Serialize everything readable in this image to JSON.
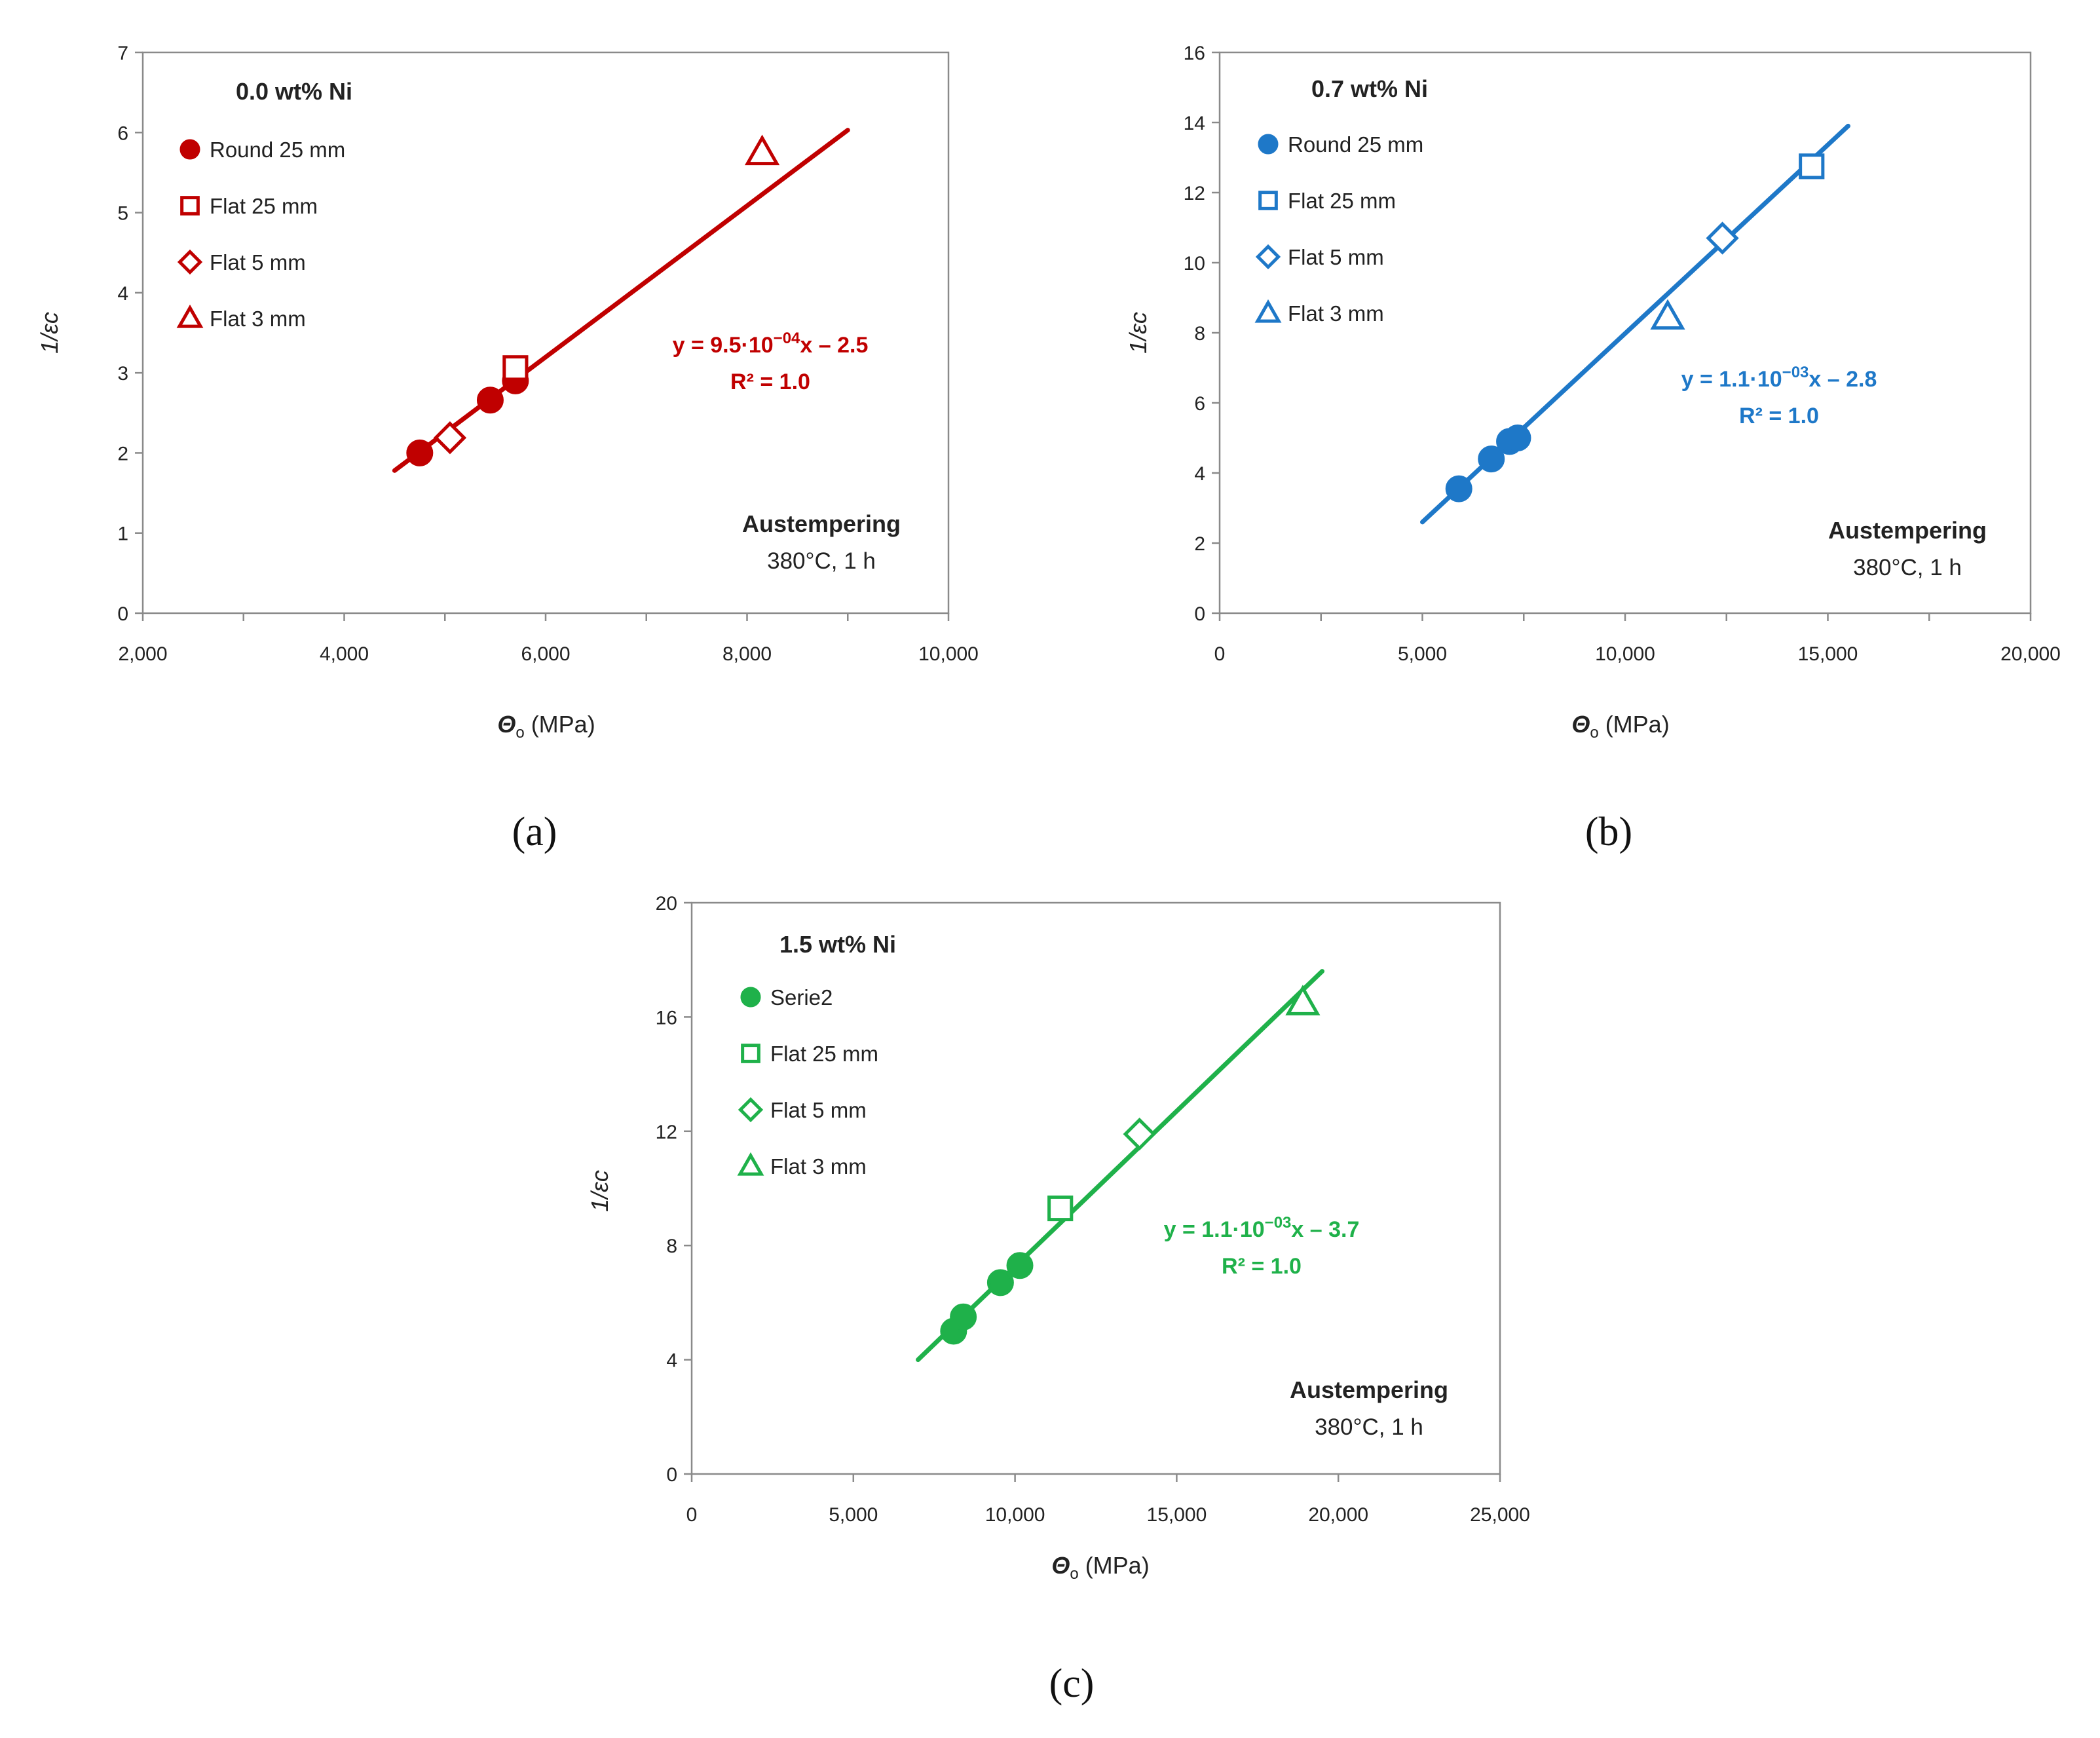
{
  "chart_data": [
    {
      "type": "scatter",
      "panel_label": "(a)",
      "title": "0.0 wt% Ni",
      "color": "#c00000",
      "xlabel_symbol": "Θ",
      "xlabel_sub": "o",
      "xlabel_unit": " (MPa)",
      "ylabel": "1/εc",
      "xlim": [
        2000,
        10000
      ],
      "ylim": [
        0,
        7
      ],
      "xticks": [
        2000,
        4000,
        6000,
        8000,
        10000
      ],
      "xtick_labels": [
        "2,000",
        "4,000",
        "6,000",
        "8,000",
        "10,000"
      ],
      "x_minor_ticks": [
        3000,
        5000,
        7000,
        9000
      ],
      "yticks": [
        0,
        1,
        2,
        3,
        4,
        5,
        6,
        7
      ],
      "ytick_labels": [
        "0",
        "1",
        "2",
        "3",
        "4",
        "5",
        "6",
        "7"
      ],
      "legend": [
        "Round 25 mm",
        "Flat 25 mm",
        "Flat 5 mm",
        "Flat 3 mm"
      ],
      "series": [
        {
          "name": "Round 25 mm",
          "marker": "circle",
          "filled": true,
          "points": [
            [
              4750,
              2.0
            ],
            [
              5450,
              2.66
            ],
            [
              5700,
              2.9
            ]
          ]
        },
        {
          "name": "Flat 25 mm",
          "marker": "square",
          "filled": false,
          "points": [
            [
              5700,
              3.06
            ]
          ]
        },
        {
          "name": "Flat 5 mm",
          "marker": "diamond",
          "filled": false,
          "points": [
            [
              5050,
              2.19
            ]
          ]
        },
        {
          "name": "Flat 3 mm",
          "marker": "triangle",
          "filled": false,
          "points": [
            [
              8150,
              5.75
            ]
          ]
        }
      ],
      "fit_line": [
        [
          4500,
          1.78
        ],
        [
          9000,
          6.03
        ]
      ],
      "equation_prefix": "y = 9.5·10",
      "equation_exp": "−04",
      "equation_suffix": "x – 2.5",
      "r2": "R² = 1.0",
      "annotation_title": "Austempering",
      "annotation_sub": "380°C, 1 h"
    },
    {
      "type": "scatter",
      "panel_label": "(b)",
      "title": "0.7 wt% Ni",
      "color": "#1e78c8",
      "xlabel_symbol": "Θ",
      "xlabel_sub": "o",
      "xlabel_unit": " (MPa)",
      "ylabel": "1/εc",
      "xlim": [
        0,
        20000
      ],
      "ylim": [
        0,
        16
      ],
      "xticks": [
        0,
        5000,
        10000,
        15000,
        20000
      ],
      "xtick_labels": [
        "0",
        "5,000",
        "10,000",
        "15,000",
        "20,000"
      ],
      "x_minor_ticks": [
        2500,
        7500,
        12500,
        17500
      ],
      "yticks": [
        0,
        2,
        4,
        6,
        8,
        10,
        12,
        14,
        16
      ],
      "ytick_labels": [
        "0",
        "2",
        "4",
        "6",
        "8",
        "10",
        "12",
        "14",
        "16"
      ],
      "legend": [
        "Round 25 mm",
        "Flat 25 mm",
        "Flat 5 mm",
        "Flat 3 mm"
      ],
      "series": [
        {
          "name": "Round 25 mm",
          "marker": "circle",
          "filled": true,
          "points": [
            [
              5900,
              3.55
            ],
            [
              6700,
              4.4
            ],
            [
              7150,
              4.9
            ],
            [
              7350,
              5.0
            ]
          ]
        },
        {
          "name": "Flat 25 mm",
          "marker": "square",
          "filled": false,
          "points": [
            [
              14600,
              12.75
            ]
          ]
        },
        {
          "name": "Flat 5 mm",
          "marker": "diamond",
          "filled": false,
          "points": [
            [
              12400,
              10.7
            ]
          ]
        },
        {
          "name": "Flat 3 mm",
          "marker": "triangle",
          "filled": false,
          "points": [
            [
              11050,
              8.45
            ]
          ]
        }
      ],
      "fit_line": [
        [
          5000,
          2.6
        ],
        [
          15500,
          13.9
        ]
      ],
      "equation_prefix": "y = 1.1·10",
      "equation_exp": "−03",
      "equation_suffix": "x – 2.8",
      "r2": "R² = 1.0",
      "annotation_title": "Austempering",
      "annotation_sub": "380°C, 1 h"
    },
    {
      "type": "scatter",
      "panel_label": "(c)",
      "title": "1.5 wt% Ni",
      "color": "#1fb14a",
      "xlabel_symbol": "Θ",
      "xlabel_sub": "o",
      "xlabel_unit": " (MPa)",
      "ylabel": "1/εc",
      "xlim": [
        0,
        25000
      ],
      "ylim": [
        0,
        20
      ],
      "xticks": [
        0,
        5000,
        10000,
        15000,
        20000,
        25000
      ],
      "xtick_labels": [
        "0",
        "5,000",
        "10,000",
        "15,000",
        "20,000",
        "25,000"
      ],
      "x_minor_ticks": [],
      "yticks": [
        0,
        4,
        8,
        12,
        16,
        20
      ],
      "ytick_labels": [
        "0",
        "4",
        "8",
        "12",
        "16",
        "20"
      ],
      "legend": [
        "Serie2",
        "Flat 25 mm",
        "Flat 5 mm",
        "Flat 3 mm"
      ],
      "series": [
        {
          "name": "Serie2",
          "marker": "circle",
          "filled": true,
          "points": [
            [
              8100,
              5.0
            ],
            [
              8400,
              5.5
            ],
            [
              9550,
              6.7
            ],
            [
              10150,
              7.3
            ]
          ]
        },
        {
          "name": "Flat 25 mm",
          "marker": "square",
          "filled": false,
          "points": [
            [
              11400,
              9.3
            ]
          ]
        },
        {
          "name": "Flat 5 mm",
          "marker": "diamond",
          "filled": false,
          "points": [
            [
              13850,
              11.9
            ]
          ]
        },
        {
          "name": "Flat 3 mm",
          "marker": "triangle",
          "filled": false,
          "points": [
            [
              18900,
              16.5
            ]
          ]
        }
      ],
      "fit_line": [
        [
          7000,
          4.0
        ],
        [
          19500,
          17.6
        ]
      ],
      "equation_prefix": "y = 1.1·10",
      "equation_exp": "−03",
      "equation_suffix": "x – 3.7",
      "r2": "R² = 1.0",
      "annotation_title": "Austempering",
      "annotation_sub": "380°C, 1 h"
    }
  ]
}
